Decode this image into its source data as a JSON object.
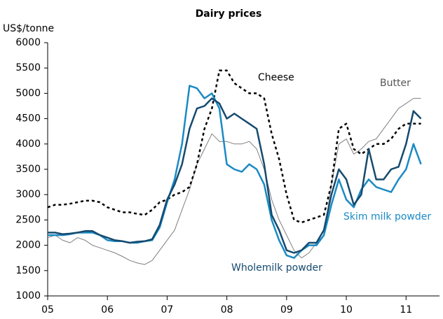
{
  "chart_data": {
    "type": "line",
    "title": "Dairy prices",
    "y_label": "US$/tonne",
    "x": [
      2005,
      2005.125,
      2005.25,
      2005.375,
      2005.5,
      2005.625,
      2005.75,
      2005.875,
      2006,
      2006.125,
      2006.25,
      2006.375,
      2006.5,
      2006.625,
      2006.75,
      2006.875,
      2007,
      2007.125,
      2007.25,
      2007.375,
      2007.5,
      2007.625,
      2007.75,
      2007.875,
      2008,
      2008.125,
      2008.25,
      2008.375,
      2008.5,
      2008.625,
      2008.75,
      2008.875,
      2009,
      2009.125,
      2009.25,
      2009.375,
      2009.5,
      2009.625,
      2009.75,
      2009.875,
      2010,
      2010.125,
      2010.25,
      2010.375,
      2010.5,
      2010.625,
      2010.75,
      2010.875,
      2011,
      2011.125,
      2011.25
    ],
    "series": [
      {
        "name": "Cheese",
        "color": "#000000",
        "dashed": true,
        "values": [
          2750,
          2800,
          2800,
          2820,
          2850,
          2880,
          2880,
          2850,
          2750,
          2700,
          2650,
          2650,
          2620,
          2600,
          2700,
          2850,
          2900,
          3000,
          3050,
          3150,
          3600,
          4300,
          4700,
          5450,
          5450,
          5200,
          5100,
          5000,
          5000,
          4900,
          4200,
          3700,
          3000,
          2500,
          2450,
          2500,
          2550,
          2600,
          3200,
          4300,
          4400,
          3900,
          3800,
          3900,
          4000,
          4000,
          4100,
          4300,
          4400,
          4400,
          4400
        ]
      },
      {
        "name": "Butter",
        "color": "#7f7f7f",
        "dashed": false,
        "values": [
          2150,
          2200,
          2100,
          2050,
          2150,
          2100,
          2000,
          1950,
          1900,
          1850,
          1780,
          1700,
          1650,
          1620,
          1700,
          1900,
          2100,
          2300,
          2700,
          3100,
          3600,
          3900,
          4200,
          4050,
          4050,
          4000,
          4000,
          4050,
          3900,
          3500,
          2900,
          2500,
          2200,
          1900,
          1750,
          1850,
          2050,
          2200,
          3200,
          4000,
          4100,
          3800,
          3900,
          4050,
          4100,
          4300,
          4500,
          4700,
          4800,
          4900,
          4900
        ]
      },
      {
        "name": "Skim milk powder",
        "color": "#1a8ac4",
        "dashed": false,
        "values": [
          2200,
          2200,
          2200,
          2220,
          2250,
          2250,
          2250,
          2200,
          2100,
          2080,
          2080,
          2050,
          2050,
          2080,
          2100,
          2350,
          2850,
          3300,
          4000,
          5150,
          5100,
          4900,
          5000,
          4700,
          3600,
          3500,
          3450,
          3600,
          3500,
          3200,
          2500,
          2100,
          1800,
          1750,
          1900,
          2000,
          2000,
          2200,
          2800,
          3300,
          2900,
          2750,
          3100,
          3300,
          3150,
          3100,
          3050,
          3300,
          3500,
          4000,
          3600
        ]
      },
      {
        "name": "Wholemilk powder",
        "color": "#154a6e",
        "dashed": false,
        "values": [
          2250,
          2250,
          2220,
          2230,
          2250,
          2280,
          2280,
          2200,
          2150,
          2100,
          2080,
          2050,
          2070,
          2080,
          2120,
          2400,
          2900,
          3200,
          3600,
          4300,
          4700,
          4750,
          4900,
          4800,
          4500,
          4600,
          4500,
          4400,
          4300,
          3600,
          2600,
          2300,
          1900,
          1850,
          1900,
          2050,
          2050,
          2300,
          3000,
          3500,
          3300,
          2800,
          3000,
          3900,
          3300,
          3300,
          3500,
          3550,
          4000,
          4650,
          4500
        ]
      }
    ],
    "xlim": [
      2005,
      2011.56
    ],
    "xticks": [
      {
        "value": 2005,
        "label": "05"
      },
      {
        "value": 2006,
        "label": "06"
      },
      {
        "value": 2007,
        "label": "07"
      },
      {
        "value": 2008,
        "label": "08"
      },
      {
        "value": 2009,
        "label": "09"
      },
      {
        "value": 2010,
        "label": "10"
      },
      {
        "value": 2011,
        "label": "11"
      }
    ],
    "ylim": [
      1000,
      6000
    ],
    "yticks": [
      1000,
      1500,
      2000,
      2500,
      3000,
      3500,
      4000,
      4500,
      5000,
      5500,
      6000
    ],
    "grid": false
  }
}
